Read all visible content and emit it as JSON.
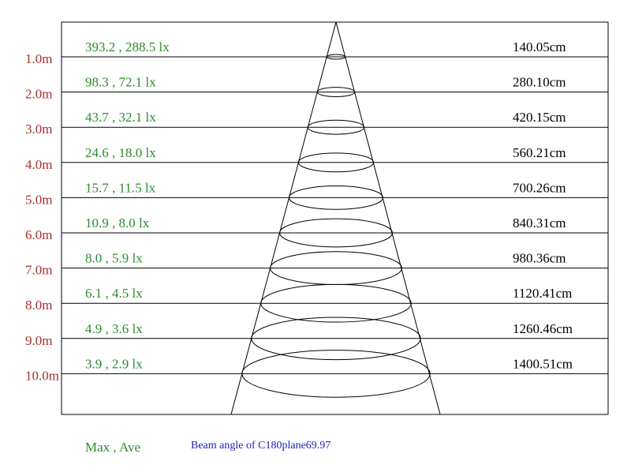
{
  "rows": [
    {
      "distance": "1.0m",
      "illuminance": "393.2 , 288.5 lx",
      "diameter": "140.05cm"
    },
    {
      "distance": "2.0m",
      "illuminance": "98.3 , 72.1 lx",
      "diameter": "280.10cm"
    },
    {
      "distance": "3.0m",
      "illuminance": "43.7 , 32.1 lx",
      "diameter": "420.15cm"
    },
    {
      "distance": "4.0m",
      "illuminance": "24.6 , 18.0 lx",
      "diameter": "560.21cm"
    },
    {
      "distance": "5.0m",
      "illuminance": "15.7 , 11.5 lx",
      "diameter": "700.26cm"
    },
    {
      "distance": "6.0m",
      "illuminance": "10.9 , 8.0 lx",
      "diameter": "840.31cm"
    },
    {
      "distance": "7.0m",
      "illuminance": "8.0 , 5.9 lx",
      "diameter": "980.36cm"
    },
    {
      "distance": "8.0m",
      "illuminance": "6.1 , 4.5 lx",
      "diameter": "1120.41cm"
    },
    {
      "distance": "9.0m",
      "illuminance": "4.9 , 3.6 lx",
      "diameter": "1260.46cm"
    },
    {
      "distance": "10.0m",
      "illuminance": "3.9 , 2.9 lx",
      "diameter": "1400.51cm"
    }
  ],
  "legend": "Max , Ave",
  "beam_angle": "Beam angle of C180plane69.97"
}
